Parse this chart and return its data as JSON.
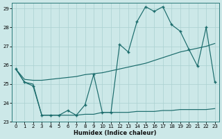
{
  "title": "",
  "xlabel": "Humidex (Indice chaleur)",
  "bg_color": "#cce8e8",
  "grid_color": "#aad0d0",
  "line_color": "#1a6b6b",
  "xlim": [
    -0.5,
    23.5
  ],
  "ylim": [
    23,
    29.3
  ],
  "xticks": [
    0,
    1,
    2,
    3,
    4,
    5,
    6,
    7,
    8,
    9,
    10,
    11,
    12,
    13,
    14,
    15,
    16,
    17,
    18,
    19,
    20,
    21,
    22,
    23
  ],
  "yticks": [
    23,
    24,
    25,
    26,
    27,
    28,
    29
  ],
  "line1_x": [
    0,
    1,
    2,
    3,
    4,
    5,
    6,
    7,
    8,
    9,
    10,
    11,
    12,
    13,
    14,
    15,
    16,
    17,
    18,
    19,
    20,
    21,
    22,
    23
  ],
  "line1_y": [
    25.8,
    25.1,
    24.9,
    23.35,
    23.35,
    23.35,
    23.6,
    23.35,
    23.9,
    25.5,
    23.5,
    23.5,
    27.1,
    26.7,
    28.3,
    29.1,
    28.85,
    29.1,
    28.15,
    27.8,
    26.85,
    25.95,
    28.0,
    25.1
  ],
  "line2_x": [
    0,
    1,
    2,
    3,
    4,
    5,
    6,
    7,
    8,
    9,
    10,
    11,
    12,
    13,
    14,
    15,
    16,
    17,
    18,
    19,
    20,
    21,
    22,
    23
  ],
  "line2_y": [
    25.8,
    25.25,
    25.2,
    25.2,
    25.25,
    25.3,
    25.35,
    25.4,
    25.5,
    25.55,
    25.6,
    25.7,
    25.8,
    25.9,
    26.0,
    26.1,
    26.25,
    26.4,
    26.55,
    26.7,
    26.8,
    26.9,
    27.0,
    27.15
  ],
  "line3_x": [
    0,
    1,
    2,
    3,
    4,
    5,
    6,
    7,
    8,
    9,
    10,
    11,
    12,
    13,
    14,
    15,
    16,
    17,
    18,
    19,
    20,
    21,
    22,
    23
  ],
  "line3_y": [
    25.8,
    25.1,
    25.0,
    23.35,
    23.35,
    23.35,
    23.35,
    23.35,
    23.4,
    23.4,
    23.5,
    23.5,
    23.5,
    23.5,
    23.55,
    23.55,
    23.55,
    23.6,
    23.6,
    23.65,
    23.65,
    23.65,
    23.65,
    23.7
  ]
}
